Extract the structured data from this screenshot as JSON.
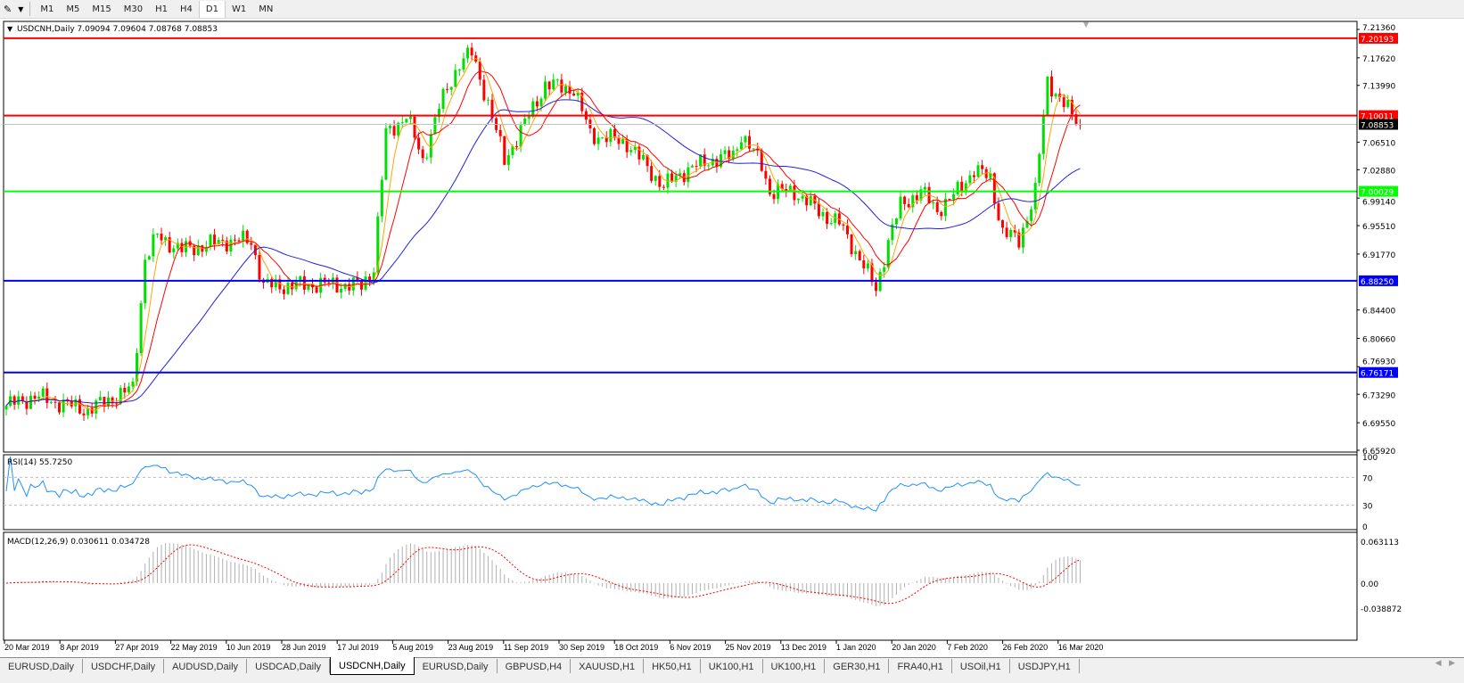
{
  "toolbar": {
    "timeframes": [
      "M1",
      "M5",
      "M15",
      "M30",
      "H1",
      "H4",
      "D1",
      "W1",
      "MN"
    ],
    "active": "D1"
  },
  "chart": {
    "header": "USDCNH,Daily  7.09094 7.09604 7.08768 7.08853",
    "symbol": "USDCNH",
    "timeframe": "Daily",
    "ohlc": {
      "open": "7.09094",
      "high": "7.09604",
      "low": "7.08768",
      "close": "7.08853"
    },
    "price_ticks": [
      "7.21360",
      "7.17620",
      "7.13990",
      "7.10011",
      "7.06510",
      "7.02880",
      "6.99140",
      "6.95510",
      "6.91770",
      "6.84400",
      "6.80660",
      "6.76930",
      "6.73290",
      "6.69550",
      "6.65920"
    ],
    "price_range": [
      6.6592,
      7.2136
    ],
    "levels": [
      {
        "label": "7.20193",
        "value": 7.20193,
        "color": "#ff0000"
      },
      {
        "label": "7.10011",
        "value": 7.10011,
        "color": "#ff0000"
      },
      {
        "label": "7.08853",
        "value": 7.08853,
        "color": "#c0c0c0",
        "tag": "#000000"
      },
      {
        "label": "7.00029",
        "value": 7.00029,
        "color": "#00ff00"
      },
      {
        "label": "6.88250",
        "value": 6.8825,
        "color": "#0000ff"
      },
      {
        "label": "6.76171",
        "value": 6.76171,
        "color": "#0000ff"
      }
    ],
    "colors": {
      "bull": "#00e000",
      "bear": "#ff0000",
      "ma_fast": "#ffa500",
      "ma_mid": "#ff0000",
      "ma_slow": "#2020e0",
      "rsi": "#1e90ff",
      "macd_hist": "#b0b0b0",
      "macd_signal": "#ff0000"
    },
    "approx_closes": [
      [
        0,
        6.718
      ],
      [
        7,
        6.73
      ],
      [
        20,
        6.712
      ],
      [
        31,
        6.741
      ],
      [
        34,
        6.912
      ],
      [
        37,
        6.941
      ],
      [
        43,
        6.923
      ],
      [
        54,
        6.935
      ],
      [
        60,
        6.935
      ],
      [
        63,
        6.876
      ],
      [
        70,
        6.876
      ],
      [
        76,
        6.878
      ],
      [
        87,
        6.876
      ],
      [
        90,
        6.9
      ],
      [
        93,
        7.076
      ],
      [
        98,
        7.1
      ],
      [
        102,
        7.041
      ],
      [
        106,
        7.111
      ],
      [
        111,
        7.17
      ],
      [
        114,
        7.182
      ],
      [
        118,
        7.117
      ],
      [
        122,
        7.041
      ],
      [
        128,
        7.1
      ],
      [
        132,
        7.141
      ],
      [
        139,
        7.135
      ],
      [
        143,
        7.076
      ],
      [
        152,
        7.064
      ],
      [
        161,
        7.006
      ],
      [
        165,
        7.024
      ],
      [
        172,
        7.041
      ],
      [
        178,
        7.047
      ],
      [
        180,
        7.076
      ],
      [
        185,
        7.035
      ],
      [
        187,
        7.0
      ],
      [
        193,
        7.0
      ],
      [
        200,
        6.97
      ],
      [
        204,
        6.958
      ],
      [
        209,
        6.912
      ],
      [
        213,
        6.871
      ],
      [
        216,
        6.935
      ],
      [
        219,
        6.982
      ],
      [
        224,
        7.0
      ],
      [
        228,
        6.976
      ],
      [
        232,
        6.994
      ],
      [
        237,
        7.029
      ],
      [
        241,
        7.017
      ],
      [
        244,
        6.947
      ],
      [
        248,
        6.935
      ],
      [
        252,
        7.0
      ],
      [
        255,
        7.146
      ],
      [
        258,
        7.123
      ],
      [
        261,
        7.1
      ],
      [
        263,
        7.0885
      ]
    ],
    "date_labels": [
      "20 Mar 2019",
      "8 Apr 2019",
      "27 Apr 2019",
      "22 May 2019",
      "10 Jun 2019",
      "28 Jun 2019",
      "17 Jul 2019",
      "5 Aug 2019",
      "23 Aug 2019",
      "11 Sep 2019",
      "30 Sep 2019",
      "18 Oct 2019",
      "6 Nov 2019",
      "25 Nov 2019",
      "13 Dec 2019",
      "1 Jan 2020",
      "20 Jan 2020",
      "7 Feb 2020",
      "26 Feb 2020",
      "16 Mar 2020"
    ]
  },
  "rsi": {
    "label": "RSI(14) 55.7250",
    "ticks": [
      "100",
      "70",
      "30",
      "0"
    ]
  },
  "macd": {
    "label": "MACD(12,26,9) 0.030611 0.034728",
    "ticks": [
      "0.063113",
      "0.00",
      "-0.038872"
    ]
  },
  "tabs": [
    "EURUSD,Daily",
    "USDCHF,Daily",
    "AUDUSD,Daily",
    "USDCAD,Daily",
    "USDCNH,Daily",
    "EURUSD,Daily",
    "GBPUSD,H4",
    "XAUUSD,H1",
    "HK50,H1",
    "UK100,H1",
    "UK100,H1",
    "GER30,H1",
    "FRA40,H1",
    "USOil,H1",
    "USDJPY,H1"
  ],
  "active_tab": 4
}
